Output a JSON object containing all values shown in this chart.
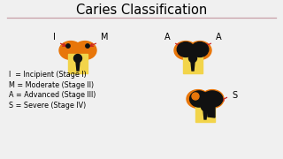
{
  "title": "Caries Classification",
  "title_fontsize": 10.5,
  "background_color": "#f0f0f0",
  "legend_lines": [
    "I  = Incipient (Stage I)",
    "M = Moderate (Stage II)",
    "A = Advanced (Stage III)",
    "S = Severe (Stage IV)"
  ],
  "orange_color": "#E8760A",
  "yellow_color": "#F2D44A",
  "black_color": "#111111",
  "red_color": "#CC2222",
  "label_fontsize": 7,
  "legend_fontsize": 5.8,
  "separator_color": "#C8A0A8"
}
